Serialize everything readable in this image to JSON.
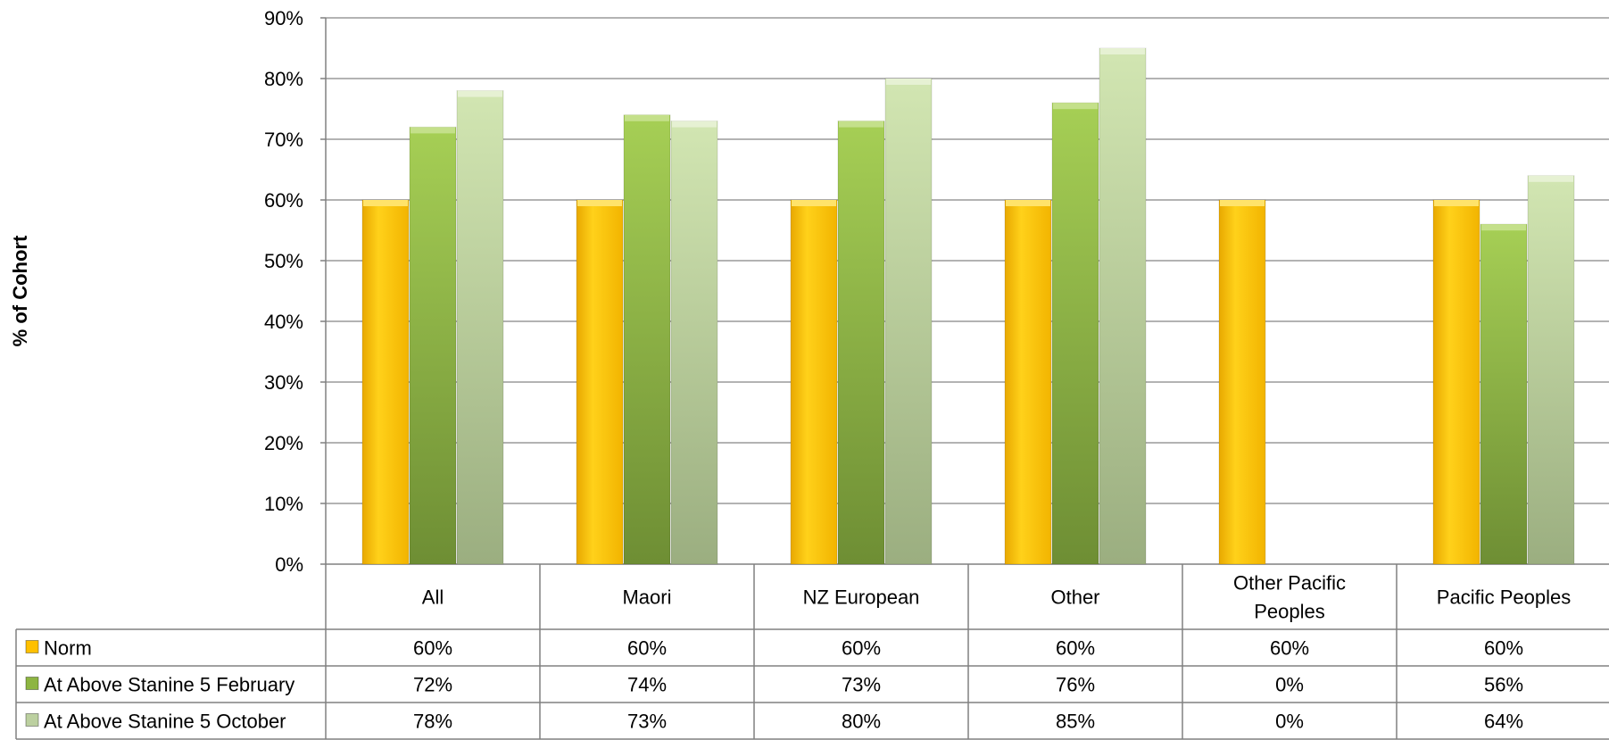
{
  "chart_data": {
    "type": "bar",
    "ylabel": "% of Cohort",
    "ylim": [
      0,
      90
    ],
    "y_ticks": [
      "0%",
      "10%",
      "20%",
      "30%",
      "40%",
      "50%",
      "60%",
      "70%",
      "80%",
      "90%"
    ],
    "grid": true,
    "categories": [
      "All",
      "Maori",
      "NZ European",
      "Other",
      "Other Pacific Peoples",
      "Pacific Peoples"
    ],
    "series": [
      {
        "name": "Norm",
        "color": "#FFC000",
        "values": [
          60,
          60,
          60,
          60,
          60,
          60
        ],
        "labels": [
          "60%",
          "60%",
          "60%",
          "60%",
          "60%",
          "60%"
        ]
      },
      {
        "name": "At Above Stanine 5 February",
        "color": "#8DB542",
        "values": [
          72,
          74,
          73,
          76,
          0,
          56
        ],
        "labels": [
          "72%",
          "74%",
          "73%",
          "76%",
          "0%",
          "56%"
        ]
      },
      {
        "name": "At Above Stanine 5 October",
        "color": "#BCD0A0",
        "values": [
          78,
          73,
          80,
          85,
          0,
          64
        ],
        "labels": [
          "78%",
          "73%",
          "80%",
          "85%",
          "0%",
          "64%"
        ]
      }
    ],
    "legend": "data-table"
  }
}
